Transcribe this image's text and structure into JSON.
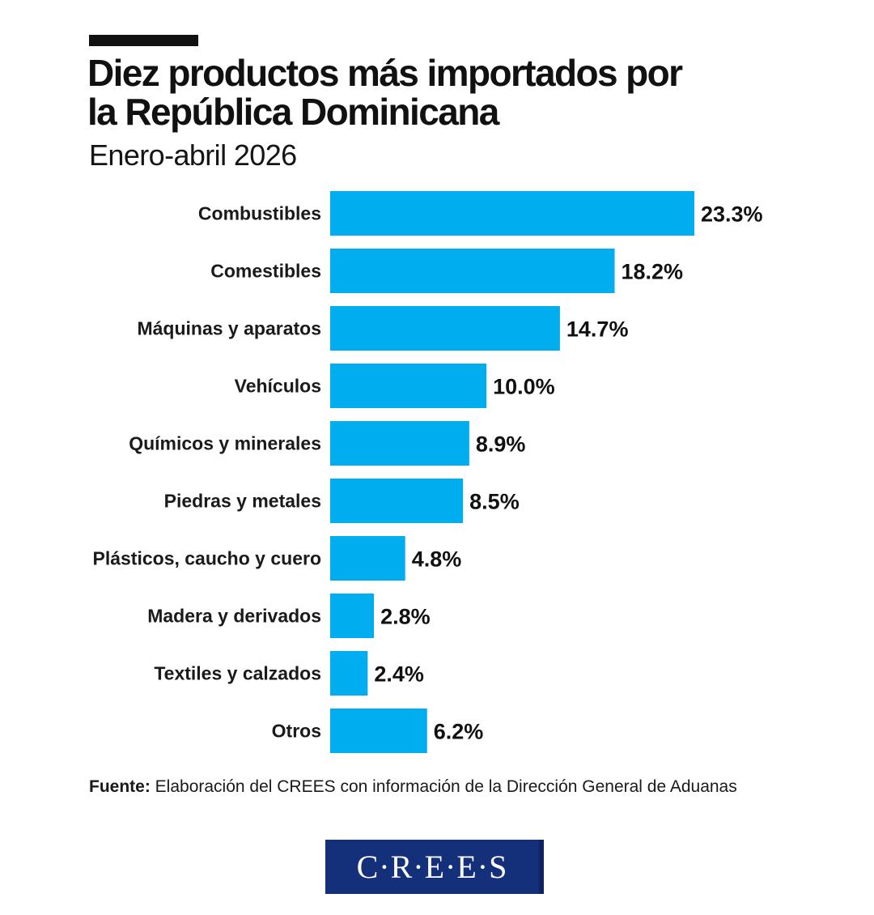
{
  "header": {
    "title_line1": "Diez productos más importados por",
    "title_line2": "la República Dominicana",
    "subtitle": "Enero-abril 2026"
  },
  "chart_data": {
    "type": "bar",
    "orientation": "horizontal",
    "title": "Diez productos más importados por la República Dominicana",
    "subtitle": "Enero-abril 2026",
    "categories": [
      "Combustibles",
      "Comestibles",
      "Máquinas y aparatos",
      "Vehículos",
      "Químicos y minerales",
      "Piedras y metales",
      "Plásticos, caucho y cuero",
      "Madera y derivados",
      "Textiles y calzados",
      "Otros"
    ],
    "values": [
      23.3,
      18.2,
      14.7,
      10.0,
      8.9,
      8.5,
      4.8,
      2.8,
      2.4,
      6.2
    ],
    "value_labels": [
      "23.3%",
      "18.2%",
      "14.7%",
      "10.0%",
      "8.9%",
      "8.5%",
      "4.8%",
      "2.8%",
      "2.4%",
      "6.2%"
    ],
    "unit": "%",
    "bar_color": "#00aeef",
    "grid": false,
    "legend": "none"
  },
  "footer": {
    "source_label": "Fuente:",
    "source_text": " Elaboración del CREES con información de la Dirección General de Aduanas"
  },
  "logo": {
    "text": "C·R·E·E·S",
    "background": "#15307a"
  }
}
